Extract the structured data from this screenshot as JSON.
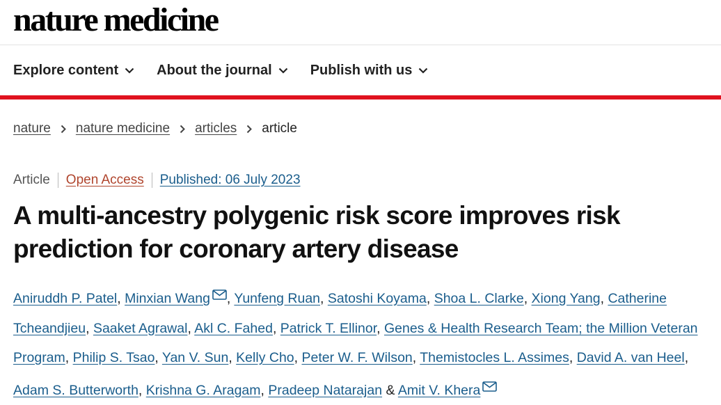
{
  "site": {
    "logo": "nature medicine"
  },
  "nav": {
    "items": [
      {
        "label": "Explore content",
        "icon": "chevron-down-icon"
      },
      {
        "label": "About the journal",
        "icon": "chevron-down-icon"
      },
      {
        "label": "Publish with us",
        "icon": "chevron-down-icon"
      }
    ]
  },
  "breadcrumb": {
    "links": [
      "nature",
      "nature medicine",
      "articles"
    ],
    "current": "article"
  },
  "article": {
    "type": "Article",
    "access": "Open Access",
    "published": "Published: 06 July 2023",
    "title": "A multi-ancestry polygenic risk score improves risk prediction for coronary artery disease",
    "authors": [
      "Aniruddh P. Patel",
      "Minxian Wang",
      "Yunfeng Ruan",
      "Satoshi Koyama",
      "Shoa L. Clarke",
      "Xiong Yang",
      "Catherine Tcheandjieu",
      "Saaket Agrawal",
      "Akl C. Fahed",
      "Patrick T. Ellinor",
      "Genes & Health Research Team; the Million Veteran Program",
      "Philip S. Tsao",
      "Yan V. Sun",
      "Kelly Cho",
      "Peter W. F. Wilson",
      "Themistocles L. Assimes",
      "David A. van Heel",
      "Adam S. Butterworth",
      "Krishna G. Aragam",
      "Pradeep Natarajan",
      "Amit V. Khera"
    ],
    "corresponding_authors": [
      "Minxian Wang",
      "Amit V. Khera"
    ],
    "author_separator": ", ",
    "author_last_separator": " & "
  },
  "colors": {
    "accent_red": "#e0121f",
    "link_blue": "#1a5d8c",
    "open_access": "#b0452d"
  }
}
